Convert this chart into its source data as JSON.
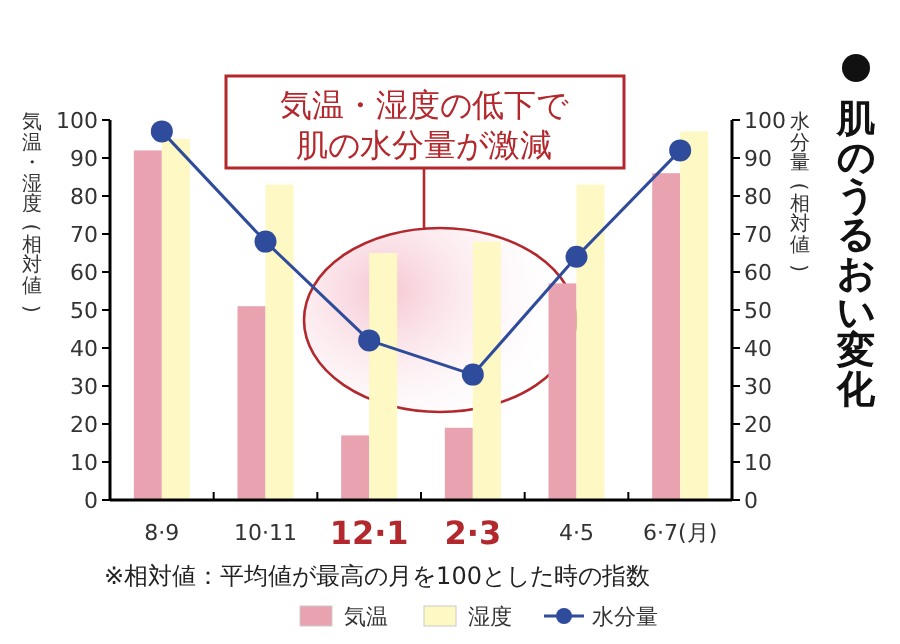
{
  "chart_data": {
    "type": "bar",
    "title": "肌のうるおい変化",
    "ylabel": "気温・湿度(相対値)",
    "y2label": "水分量(相対値)",
    "categories": [
      "8·9",
      "10·11",
      "**12·1**",
      "**2·3**",
      "4·5",
      "6·7(月)"
    ],
    "series": [
      {
        "name": "気温",
        "color": "#e9a3b0",
        "values": [
          92,
          51,
          17,
          19,
          57,
          86
        ]
      },
      {
        "name": "湿度",
        "color": "#fdf8c4",
        "values": [
          95,
          83,
          65,
          68,
          83,
          97
        ]
      },
      {
        "name": "水分量",
        "type": "line",
        "axis": "y2",
        "color": "#2f4b9b",
        "marker": "circle",
        "values": [
          97,
          68,
          42,
          33,
          64,
          92
        ]
      }
    ],
    "ylim": [
      0,
      100
    ],
    "yticks": [
      0,
      10,
      20,
      30,
      40,
      50,
      60,
      70,
      80,
      90,
      100
    ],
    "y2lim": [
      0,
      100
    ],
    "y2ticks": [
      0,
      10,
      20,
      30,
      40,
      50,
      60,
      70,
      80,
      90,
      100
    ],
    "legend": "bottom",
    "grid": false,
    "annotations": [
      "気温・湿度の低下で肌の水分量が激減",
      "※相対値：平均値が最高の月を100とした時の指数"
    ]
  }
}
